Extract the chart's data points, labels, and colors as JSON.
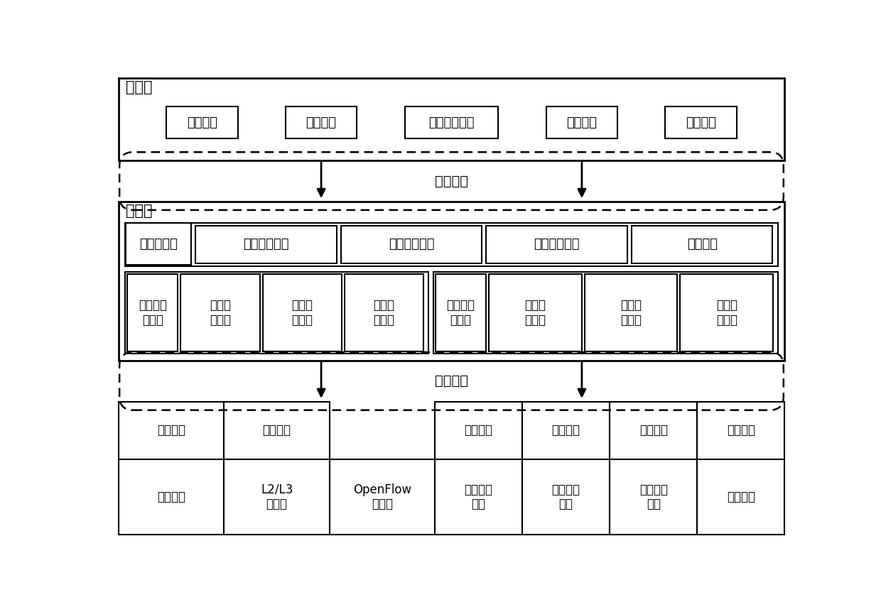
{
  "bg_color": "#ffffff",
  "border_color": "#000000",
  "app_layer_label": "应用层",
  "app_boxes": [
    "应急通信",
    "定位导航",
    "偏远地区通信",
    "深空探测",
    "军事通信"
  ],
  "north_protocol": "北向协议",
  "control_layer_label": "控制层",
  "multi_controller_label": "多域控制器",
  "multi_controller_boxes": [
    "全网拓扑管理",
    "跨域路径计算",
    "全网负载均衡",
    "统一接口"
  ],
  "ground_controller_label": "地面网络\n控制器",
  "ground_sub_boxes": [
    "单域拓\n扑管理",
    "域内路\n径计算",
    "域内资\n源调度"
  ],
  "sat_controller_label": "卫星网络\n控制器",
  "sat_sub_boxes": [
    "单域控\n制功能",
    "卫星轨\n道计算",
    "卫星状\n态调整"
  ],
  "south_protocol": "南向协议",
  "ground_agent_top": [
    "协议代理",
    "协议代理"
  ],
  "ground_agent_bot": [
    "光交换机",
    "L2/L3\n交换机",
    "OpenFlow\n交换机"
  ],
  "sat_agent_top": [
    "协议代理",
    "协议代理",
    "协议代理",
    "协议代理"
  ],
  "sat_agent_bot": [
    "近地轨道\n卫星",
    "中距轨道\n卫星",
    "同步轨道\n卫星",
    "卫星基站"
  ]
}
